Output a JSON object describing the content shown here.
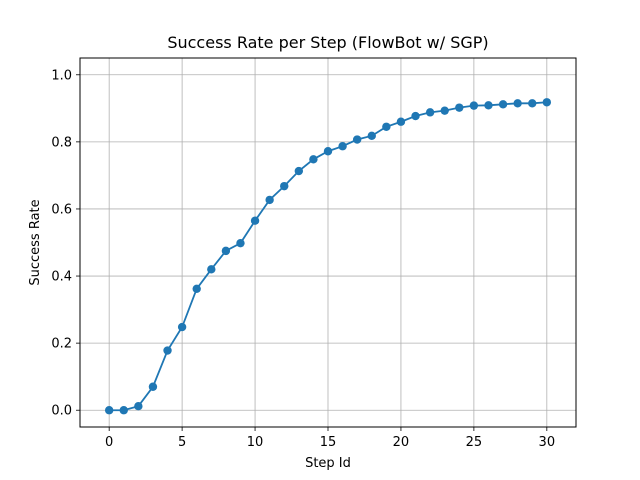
{
  "chart_data": {
    "type": "line",
    "title": "Success Rate per Step (FlowBot w/ SGP)",
    "xlabel": "Step Id",
    "ylabel": "Success Rate",
    "xlim": [
      -2,
      32
    ],
    "ylim": [
      -0.05,
      1.05
    ],
    "xticks": [
      0,
      5,
      10,
      15,
      20,
      25,
      30
    ],
    "xtick_labels": [
      "0",
      "5",
      "10",
      "15",
      "20",
      "25",
      "30"
    ],
    "yticks": [
      0.0,
      0.2,
      0.4,
      0.6,
      0.8,
      1.0
    ],
    "ytick_labels": [
      "0.0",
      "0.2",
      "0.4",
      "0.6",
      "0.8",
      "1.0"
    ],
    "grid": true,
    "series": [
      {
        "color": "#1f77b4",
        "marker": "circle",
        "x": [
          0,
          1,
          2,
          3,
          4,
          5,
          6,
          7,
          8,
          9,
          10,
          11,
          12,
          13,
          14,
          15,
          16,
          17,
          18,
          19,
          20,
          21,
          22,
          23,
          24,
          25,
          26,
          27,
          28,
          29,
          30
        ],
        "y": [
          0.0,
          0.0,
          0.012,
          0.07,
          0.178,
          0.248,
          0.362,
          0.42,
          0.475,
          0.498,
          0.565,
          0.627,
          0.668,
          0.713,
          0.748,
          0.772,
          0.787,
          0.807,
          0.818,
          0.845,
          0.86,
          0.877,
          0.888,
          0.893,
          0.902,
          0.908,
          0.909,
          0.912,
          0.915,
          0.915,
          0.918
        ]
      }
    ]
  }
}
